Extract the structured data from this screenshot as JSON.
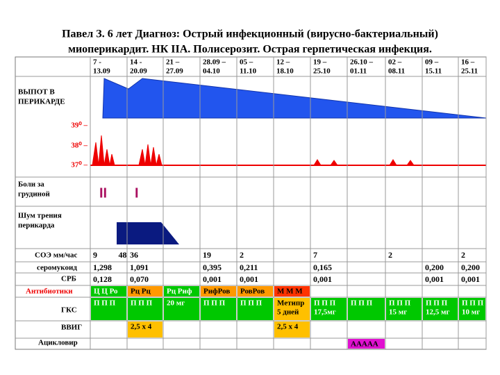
{
  "title": [
    "Павел З. 6 лет Диагноз: Острый инфекционный (вирусно-бактериальный)",
    "миоперикардит. НК IIА. Полисерозит.  Острая герпетическая инфекция."
  ],
  "periods": [
    [
      "7 -",
      "13.09"
    ],
    [
      "14 -",
      "20.09"
    ],
    [
      "21 –",
      "27.09"
    ],
    [
      "28.09 –",
      "04.10"
    ],
    [
      "05 –",
      "11.10"
    ],
    [
      "12 –",
      "18.10"
    ],
    [
      "19  –",
      "25.10"
    ],
    [
      "26.10 –",
      "01.11"
    ],
    [
      "02 –",
      "08.11"
    ],
    [
      "09 –",
      "15.11"
    ],
    [
      "16 –",
      "25.11"
    ]
  ],
  "row_labels": [
    [
      "ВЫПОТ В",
      "ПЕРИКАРДЕ"
    ],
    [
      "Боли за",
      "грудиной"
    ],
    [
      "Шум трения",
      "перикарда"
    ],
    [
      "СОЭ мм/час"
    ],
    [
      "серомукоид"
    ],
    [
      "СРБ"
    ],
    [
      "Антибиотики"
    ],
    [
      "ГКС"
    ],
    [
      "ВВИГ"
    ],
    [
      "Ацикловир"
    ]
  ],
  "temperature_labels": [
    "39⁰ –",
    "38⁰ –",
    "37⁰ –"
  ],
  "pain_marks": [
    "II",
    "I"
  ],
  "lab_rows": [
    [
      [
        "9",
        "48"
      ],
      [
        "36"
      ],
      null,
      [
        "19"
      ],
      [
        "2"
      ],
      null,
      [
        "7"
      ],
      null,
      [
        "2"
      ],
      null,
      [
        "2"
      ]
    ],
    [
      [
        "1,298"
      ],
      [
        "1,091"
      ],
      null,
      [
        "0,395"
      ],
      [
        "0,211"
      ],
      null,
      [
        "0,165"
      ],
      null,
      null,
      [
        "0,200"
      ],
      [
        "0,200"
      ]
    ],
    [
      [
        "0,128"
      ],
      [
        "0,070"
      ],
      null,
      [
        "0,001"
      ],
      [
        "0,001"
      ],
      null,
      [
        "0,001"
      ],
      null,
      null,
      [
        "0,001"
      ],
      [
        "0,001"
      ]
    ]
  ],
  "therapy_rows": [
    [
      {
        "text": [
          "Ц Ц Ро"
        ],
        "color": "#00c800"
      },
      {
        "text": [
          "Рц Рц"
        ],
        "color": "#ff9900"
      },
      {
        "text": [
          "Рц Риф"
        ],
        "color": "#00c800"
      },
      {
        "text": [
          "РифРов"
        ],
        "color": "#ff9900"
      },
      {
        "text": [
          "РовРов"
        ],
        "color": "#ff9900"
      },
      {
        "text": [
          "М М М"
        ],
        "color": "#ff3300"
      },
      null,
      null,
      null,
      null,
      null
    ],
    [
      {
        "text": [
          "П П П"
        ],
        "color": "#00c800"
      },
      {
        "text": [
          "П П П"
        ],
        "color": "#00c800"
      },
      {
        "text": [
          "20 мг"
        ],
        "color": "#00c800"
      },
      {
        "text": [
          "П П П"
        ],
        "color": "#00c800"
      },
      {
        "text": [
          "П П П"
        ],
        "color": "#00c800"
      },
      {
        "text": [
          "Метипр",
          "5 дней"
        ],
        "color": "#ffc000"
      },
      {
        "text": [
          "П П П",
          "17,5мг"
        ],
        "color": "#00c800"
      },
      {
        "text": [
          "П П П"
        ],
        "color": "#00c800"
      },
      {
        "text": [
          "П П П",
          "15 мг"
        ],
        "color": "#00c800"
      },
      {
        "text": [
          "П П П",
          "12,5 мг"
        ],
        "color": "#00c800"
      },
      {
        "text": [
          "П П П",
          "10 мг"
        ],
        "color": "#00c800"
      }
    ],
    [
      null,
      {
        "text": [
          "2,5 х 4"
        ],
        "color": "#ffc000"
      },
      null,
      null,
      null,
      {
        "text": [
          "2,5 х 4"
        ],
        "color": "#ffc000"
      },
      null,
      null,
      null,
      null,
      null
    ],
    [
      null,
      null,
      null,
      null,
      null,
      null,
      null,
      {
        "text": [
          "ААААА"
        ],
        "color": "#e010d0"
      },
      null,
      null,
      null
    ]
  ]
}
